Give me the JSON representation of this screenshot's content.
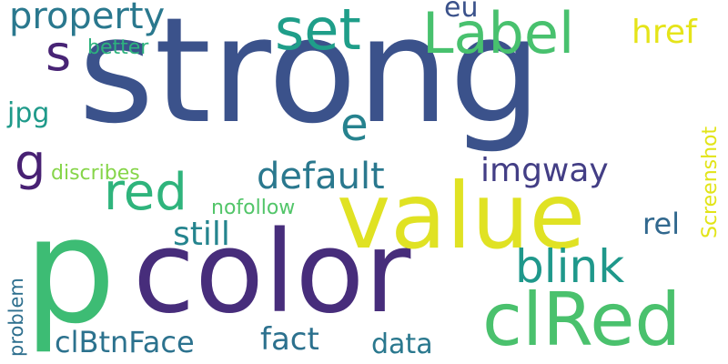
{
  "words": [
    {
      "key": "strong",
      "text": "strong",
      "color": "#3b528b"
    },
    {
      "key": "p",
      "text": "p",
      "color": "#3dbc74"
    },
    {
      "key": "color",
      "text": "color",
      "color": "#472d7b"
    },
    {
      "key": "value",
      "text": "value",
      "color": "#e0e223"
    },
    {
      "key": "clRed",
      "text": "clRed",
      "color": "#4ac16d"
    },
    {
      "key": "Label",
      "text": "Label",
      "color": "#48c16e"
    },
    {
      "key": "set",
      "text": "set",
      "color": "#1f9e89"
    },
    {
      "key": "red",
      "text": "red",
      "color": "#2fb47c"
    },
    {
      "key": "blink",
      "text": "blink",
      "color": "#1f988b"
    },
    {
      "key": "s",
      "text": "s",
      "color": "#482475"
    },
    {
      "key": "g",
      "text": "g",
      "color": "#482173"
    },
    {
      "key": "e",
      "text": "e",
      "color": "#26828e"
    },
    {
      "key": "property",
      "text": "property",
      "color": "#2a788e"
    },
    {
      "key": "default",
      "text": "default",
      "color": "#2a788e"
    },
    {
      "key": "imgway",
      "text": "imgway",
      "color": "#433e85"
    },
    {
      "key": "still",
      "text": "still",
      "color": "#25848e"
    },
    {
      "key": "clBtnFace",
      "text": "clBtnFace",
      "color": "#2c728e"
    },
    {
      "key": "fact",
      "text": "fact",
      "color": "#2c718e"
    },
    {
      "key": "data",
      "text": "data",
      "color": "#2a788e"
    },
    {
      "key": "href",
      "text": "href",
      "color": "#e5e419"
    },
    {
      "key": "rel",
      "text": "rel",
      "color": "#31688e"
    },
    {
      "key": "jpg",
      "text": "jpg",
      "color": "#1f9a8a"
    },
    {
      "key": "eu",
      "text": "eu",
      "color": "#3b528b"
    },
    {
      "key": "better",
      "text": "better",
      "color": "#2db27d"
    },
    {
      "key": "discribes",
      "text": "discribes",
      "color": "#86d549"
    },
    {
      "key": "nofollow",
      "text": "nofollow",
      "color": "#52c569"
    },
    {
      "key": "Screenshot",
      "text": "Screenshot",
      "color": "#e2e418"
    },
    {
      "key": "problem",
      "text": "problem",
      "color": "#2e6f8e"
    }
  ]
}
